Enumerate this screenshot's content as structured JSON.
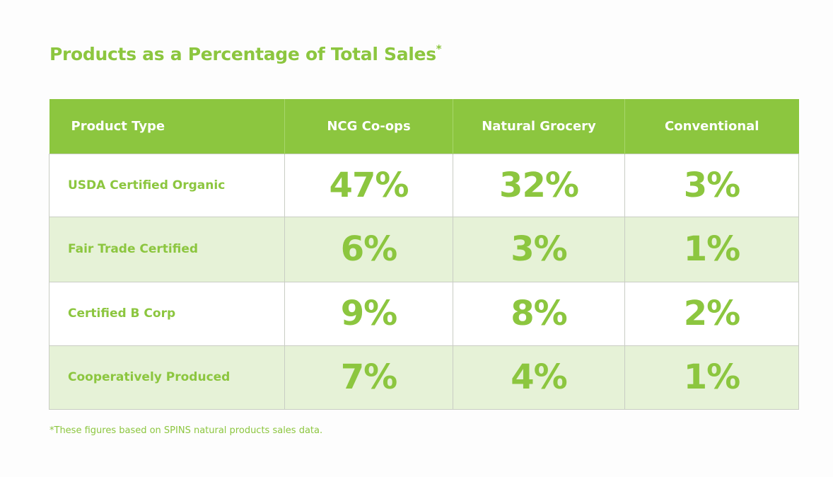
{
  "title": "Products as a Percentage of Total Sales",
  "title_mark": "*",
  "footnote": "*These figures based on SPINS natural products sales data.",
  "colors": {
    "accent": "#8cc63f",
    "row_alt": "#e6f2d7",
    "border": "#c9cdc4"
  },
  "chart_data": {
    "type": "table",
    "title": "Products as a Percentage of Total Sales*",
    "columns": [
      "Product Type",
      "NCG Co-ops",
      "Natural Grocery",
      "Conventional"
    ],
    "rows": [
      {
        "label": "USDA Certified Organic",
        "values": [
          "47%",
          "32%",
          "3%"
        ]
      },
      {
        "label": "Fair Trade Certified",
        "values": [
          "6%",
          "3%",
          "1%"
        ]
      },
      {
        "label": "Certified B Corp",
        "values": [
          "9%",
          "8%",
          "2%"
        ]
      },
      {
        "label": "Cooperatively Produced",
        "values": [
          "7%",
          "4%",
          "1%"
        ]
      }
    ]
  }
}
